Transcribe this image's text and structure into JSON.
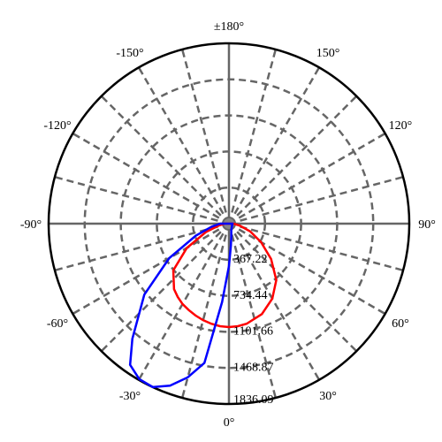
{
  "chart_data": {
    "type": "polar",
    "theta": [
      -90,
      -80,
      -70,
      -60,
      -50,
      -40,
      -35,
      -30,
      -25,
      -20,
      -15,
      -10,
      -5,
      0,
      5,
      10,
      20,
      30,
      40,
      50,
      60,
      70,
      80,
      90
    ],
    "series": [
      {
        "color": "#ff0000",
        "values": [
          45,
          100,
          250,
          495,
          740,
          870,
          910,
          945,
          970,
          995,
          1017,
          1035,
          1048,
          1053,
          1048,
          1035,
          980,
          882,
          750,
          560,
          378,
          230,
          110,
          45
        ]
      },
      {
        "color": "#0000ff",
        "values": [
          90,
          180,
          360,
          702,
          1125,
          1530,
          1755,
          1827,
          1836,
          1755,
          1620,
          1440,
          801,
          432,
          225,
          135,
          70,
          54,
          45,
          40,
          36,
          36,
          36,
          36
        ]
      }
    ],
    "rlim": [
      0,
      1836.09
    ],
    "rticks": [
      367.22,
      734.44,
      1101.66,
      1468.87,
      1836.09
    ],
    "thetaticks": [
      {
        "value": 180,
        "label": "±180°"
      },
      {
        "value": 150,
        "label": "150°"
      },
      {
        "value": 120,
        "label": "120°"
      },
      {
        "value": 90,
        "label": "90°"
      },
      {
        "value": 60,
        "label": "60°"
      },
      {
        "value": 30,
        "label": "30°"
      },
      {
        "value": 0,
        "label": "0°"
      },
      {
        "value": -30,
        "label": "-30°"
      },
      {
        "value": -60,
        "label": "-60°"
      },
      {
        "value": -90,
        "label": "-90°"
      },
      {
        "value": -120,
        "label": "-120°"
      },
      {
        "value": -150,
        "label": "-150°"
      }
    ],
    "grid": true
  }
}
